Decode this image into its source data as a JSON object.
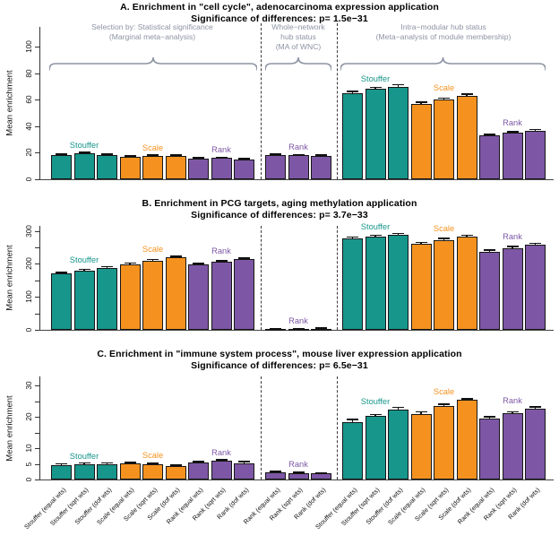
{
  "figure_title": "Meta-analysis enrichment comparison figure, three panels",
  "colors": {
    "stouffer": "#17968B",
    "scale": "#F5921F",
    "rank": "#7D57A5",
    "annotation": "#8D93A3",
    "axis": "#333333",
    "bar_border": "#161616",
    "background": "#FFFFFF"
  },
  "chart_data": {
    "type": "bar",
    "grid": false,
    "legend_position": "none",
    "categories": [
      "Stouffer (equal wts)",
      "Stouffer (sqrt wts)",
      "Stouffer (dof wts)",
      "Scale (equal wts)",
      "Scale (sqrt wts)",
      "Scale (dof wts)",
      "Rank (equal wts)",
      "Rank (sqrt wts)",
      "Rank (dof wts)",
      "Rank (equal wts)",
      "Rank (sqrt wts)",
      "Rank (dof wts)",
      "Stouffer (equal wts)",
      "Stouffer (sqrt wts)",
      "Stouffer (dof wts)",
      "Scale (equal wts)",
      "Scale (sqrt wts)",
      "Scale (dof wts)",
      "Rank (equal wts)",
      "Rank (sqrt wts)",
      "Rank (dof wts)"
    ],
    "bar_color_keys": [
      "stouffer",
      "stouffer",
      "stouffer",
      "scale",
      "scale",
      "scale",
      "rank",
      "rank",
      "rank",
      "rank",
      "rank",
      "rank",
      "stouffer",
      "stouffer",
      "stouffer",
      "scale",
      "scale",
      "scale",
      "rank",
      "rank",
      "rank"
    ],
    "group_labels": [
      {
        "label": "Stouffer",
        "color_key": "stouffer"
      },
      {
        "label": "Scale",
        "color_key": "scale"
      },
      {
        "label": "Rank",
        "color_key": "rank"
      },
      {
        "label": "Rank",
        "color_key": "rank"
      },
      {
        "label": "Stouffer",
        "color_key": "stouffer"
      },
      {
        "label": "Scale",
        "color_key": "scale"
      },
      {
        "label": "Rank",
        "color_key": "rank"
      }
    ],
    "annotations": {
      "left": [
        "Selection by: Statistical significance",
        "(Marginal meta−analysis)"
      ],
      "middle": [
        "Whole−network",
        "hub status",
        "(MA of WNC)"
      ],
      "right": [
        "Intra−modular hub status",
        "(Meta−analysis of module membership)"
      ]
    },
    "panels": [
      {
        "id": "A",
        "title": "A. Enrichment in \"cell cycle\", adenocarcinoma expression application",
        "subtitle": "Significance of differences:  p= 1.5e−31",
        "ylabel": "Mean enrichment",
        "ylim": [
          0,
          100
        ],
        "yticks": [
          0,
          20,
          40,
          60,
          80,
          100
        ],
        "ytick_labels": [
          "0",
          "20",
          "40",
          "60",
          "80",
          "100"
        ],
        "values": [
          18.5,
          19.5,
          18.5,
          17,
          17.5,
          17.5,
          15.5,
          16,
          15,
          18.5,
          18,
          17.5,
          65,
          68,
          70,
          57,
          60,
          63,
          33,
          35,
          36.5
        ],
        "errors": [
          0.5,
          0.5,
          0.5,
          0.5,
          0.5,
          0.5,
          0.5,
          0.5,
          0.5,
          0.5,
          0.5,
          0.5,
          1.2,
          1.2,
          1.2,
          1,
          1,
          1,
          0.8,
          0.8,
          0.8
        ]
      },
      {
        "id": "B",
        "title": "B. Enrichment in PCG targets, aging methylation application",
        "subtitle": "Significance of differences:  p= 3.7e−33",
        "ylabel": "Mean enrichment",
        "ylim": [
          0,
          300
        ],
        "yticks": [
          0,
          50,
          100,
          150,
          200,
          250,
          300
        ],
        "ytick_labels": [
          "0",
          "",
          "100",
          "",
          "200",
          "",
          "300"
        ],
        "values": [
          170,
          180,
          188,
          199,
          210,
          219,
          197,
          206,
          214,
          2.5,
          2.5,
          3.5,
          277,
          282,
          287,
          260,
          272,
          282,
          237,
          248,
          257
        ],
        "errors": [
          3,
          3,
          3,
          3,
          3,
          3,
          3,
          3,
          3,
          1,
          1,
          1,
          4,
          4,
          4,
          4,
          4,
          4,
          4,
          4,
          4
        ]
      },
      {
        "id": "C",
        "title": "C. Enrichment in \"immune system process\", mouse liver expression application",
        "subtitle": "Significance of differences:  p= 6.5e−31",
        "ylabel": "Mean enrichment",
        "ylim": [
          0,
          30
        ],
        "yticks": [
          0,
          5,
          10,
          15,
          20,
          25,
          30
        ],
        "ytick_labels": [
          "0",
          "5",
          "10",
          "",
          "20",
          "",
          "30"
        ],
        "values": [
          4.7,
          5.0,
          5.0,
          5.1,
          4.8,
          4.2,
          5.4,
          5.9,
          5.3,
          2.3,
          2.1,
          1.9,
          18.5,
          20.3,
          22.5,
          20.9,
          23.6,
          25.4,
          19.6,
          21.2,
          22.8
        ],
        "errors": [
          0.25,
          0.25,
          0.25,
          0.25,
          0.25,
          0.25,
          0.3,
          0.3,
          0.3,
          0.15,
          0.15,
          0.15,
          0.7,
          0.5,
          0.5,
          0.7,
          0.5,
          0.4,
          0.4,
          0.4,
          0.4
        ]
      }
    ]
  }
}
